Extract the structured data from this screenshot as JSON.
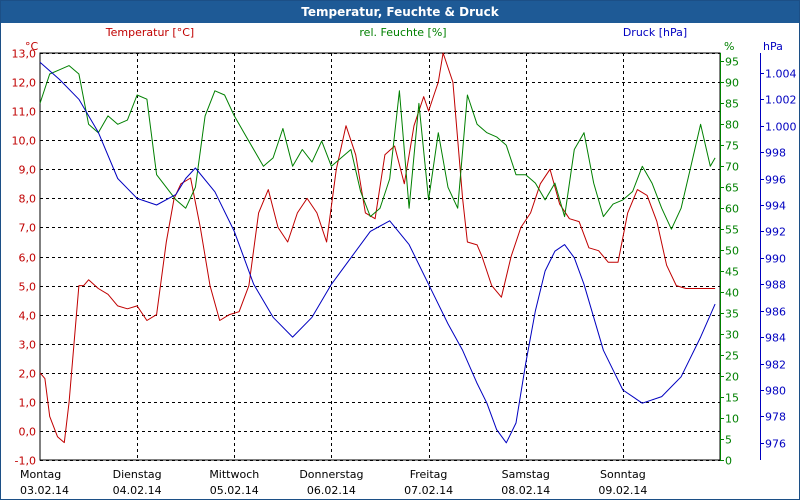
{
  "chart_data": {
    "type": "line",
    "title": "Temperatur, Feuchte & Druck",
    "legend": {
      "temp": "Temperatur [°C]",
      "hum": "rel. Feuchte [%]",
      "press": "Druck [hPa]"
    },
    "units": {
      "left": "°C",
      "right1": "%",
      "right2": "hPa"
    },
    "colors": {
      "temp": "#c00000",
      "hum": "#008000",
      "press": "#0000c0",
      "title_bg": "#1e5a96",
      "grid": "#000000"
    },
    "grid": true,
    "x_range": [
      0,
      7
    ],
    "x_ticks": [
      {
        "day": "Montag",
        "date": "03.02.14"
      },
      {
        "day": "Dienstag",
        "date": "04.02.14"
      },
      {
        "day": "Mittwoch",
        "date": "05.02.14"
      },
      {
        "day": "Donnerstag",
        "date": "06.02.14"
      },
      {
        "day": "Freitag",
        "date": "07.02.14"
      },
      {
        "day": "Samstag",
        "date": "08.02.14"
      },
      {
        "day": "Sonntag",
        "date": "09.02.14"
      }
    ],
    "y_left": {
      "label": "°C",
      "range": [
        -1.0,
        13.0
      ],
      "ticks": [
        "-1,0",
        "0,0",
        "1,0",
        "2,0",
        "3,0",
        "4,0",
        "5,0",
        "6,0",
        "7,0",
        "8,0",
        "9,0",
        "10,0",
        "11,0",
        "12,0",
        "13,0"
      ]
    },
    "y_right1": {
      "label": "%",
      "range": [
        0,
        97
      ],
      "ticks": [
        "0",
        "5",
        "10",
        "15",
        "20",
        "25",
        "30",
        "35",
        "40",
        "45",
        "50",
        "55",
        "60",
        "65",
        "70",
        "75",
        "80",
        "85",
        "90",
        "95"
      ]
    },
    "y_right2": {
      "label": "hPa",
      "range": [
        974.7,
        1005.5
      ],
      "ticks": [
        "976",
        "978",
        "980",
        "982",
        "984",
        "986",
        "988",
        "990",
        "992",
        "994",
        "996",
        "998",
        "1.000",
        "1.002",
        "1.004"
      ]
    },
    "series": [
      {
        "name": "Temperatur [°C]",
        "axis": "left",
        "x": [
          0.0,
          0.05,
          0.1,
          0.18,
          0.25,
          0.3,
          0.35,
          0.4,
          0.45,
          0.5,
          0.6,
          0.7,
          0.8,
          0.9,
          1.0,
          1.1,
          1.2,
          1.3,
          1.38,
          1.45,
          1.55,
          1.65,
          1.75,
          1.85,
          1.95,
          2.05,
          2.15,
          2.25,
          2.35,
          2.45,
          2.55,
          2.65,
          2.75,
          2.85,
          2.95,
          3.05,
          3.15,
          3.25,
          3.35,
          3.45,
          3.55,
          3.65,
          3.75,
          3.85,
          3.95,
          4.0,
          4.05,
          4.1,
          4.15,
          4.25,
          4.35,
          4.4,
          4.5,
          4.55,
          4.65,
          4.75,
          4.85,
          4.95,
          5.05,
          5.15,
          5.25,
          5.35,
          5.45,
          5.55,
          5.65,
          5.75,
          5.85,
          5.95,
          6.05,
          6.15,
          6.25,
          6.35,
          6.45,
          6.55,
          6.65,
          6.75,
          6.85,
          6.95
        ],
        "values": [
          2.0,
          1.8,
          0.5,
          -0.2,
          -0.4,
          1.0,
          3.0,
          5.0,
          5.0,
          5.2,
          4.9,
          4.7,
          4.3,
          4.2,
          4.3,
          3.8,
          4.0,
          6.5,
          8.0,
          8.5,
          8.7,
          7.0,
          5.0,
          3.8,
          4.0,
          4.1,
          5.0,
          7.5,
          8.3,
          7.0,
          6.5,
          7.5,
          8.0,
          7.5,
          6.5,
          9.0,
          10.5,
          9.5,
          7.5,
          7.3,
          9.5,
          9.8,
          8.5,
          10.5,
          11.5,
          11.0,
          11.5,
          12.0,
          13.0,
          12.0,
          8.0,
          6.5,
          6.4,
          6.0,
          5.0,
          4.6,
          6.0,
          7.0,
          7.5,
          8.5,
          9.0,
          7.8,
          7.3,
          7.2,
          6.3,
          6.2,
          5.8,
          5.8,
          7.5,
          8.3,
          8.1,
          7.2,
          5.7,
          5.0,
          4.9,
          4.9,
          4.9,
          4.9
        ]
      },
      {
        "name": "rel. Feuchte [%]",
        "axis": "right1",
        "x": [
          0.0,
          0.1,
          0.2,
          0.3,
          0.4,
          0.5,
          0.6,
          0.7,
          0.8,
          0.9,
          1.0,
          1.1,
          1.2,
          1.3,
          1.4,
          1.5,
          1.6,
          1.7,
          1.8,
          1.9,
          2.0,
          2.1,
          2.2,
          2.3,
          2.4,
          2.5,
          2.6,
          2.7,
          2.8,
          2.9,
          3.0,
          3.1,
          3.2,
          3.3,
          3.4,
          3.5,
          3.6,
          3.7,
          3.8,
          3.9,
          4.0,
          4.1,
          4.2,
          4.3,
          4.4,
          4.5,
          4.6,
          4.7,
          4.8,
          4.9,
          5.0,
          5.1,
          5.2,
          5.3,
          5.4,
          5.5,
          5.6,
          5.7,
          5.8,
          5.9,
          6.0,
          6.1,
          6.2,
          6.3,
          6.4,
          6.5,
          6.6,
          6.7,
          6.8,
          6.9,
          6.95
        ],
        "values": [
          85,
          92,
          93,
          94,
          92,
          80,
          78,
          82,
          80,
          81,
          87,
          86,
          68,
          65,
          62,
          60,
          65,
          82,
          88,
          87,
          82,
          78,
          74,
          70,
          72,
          79,
          70,
          74,
          71,
          76,
          70,
          72,
          74,
          64,
          58,
          60,
          67,
          88,
          60,
          85,
          62,
          78,
          65,
          60,
          87,
          80,
          78,
          77,
          75,
          68,
          68,
          66,
          62,
          66,
          58,
          74,
          78,
          66,
          58,
          61,
          62,
          64,
          70,
          66,
          60,
          55,
          60,
          70,
          80,
          70,
          72
        ]
      },
      {
        "name": "Druck [hPa]",
        "axis": "right2",
        "x": [
          0.0,
          0.2,
          0.4,
          0.6,
          0.8,
          1.0,
          1.2,
          1.4,
          1.5,
          1.6,
          1.8,
          2.0,
          2.2,
          2.4,
          2.6,
          2.8,
          3.0,
          3.2,
          3.4,
          3.6,
          3.8,
          4.0,
          4.2,
          4.35,
          4.5,
          4.6,
          4.7,
          4.8,
          4.9,
          5.0,
          5.1,
          5.2,
          5.3,
          5.4,
          5.5,
          5.6,
          5.8,
          6.0,
          6.2,
          6.4,
          6.6,
          6.8,
          6.95
        ],
        "values": [
          1004.8,
          1003.5,
          1002.0,
          999.5,
          996.0,
          994.5,
          994.0,
          994.8,
          996.0,
          996.8,
          995.0,
          992.0,
          988.0,
          985.5,
          984.0,
          985.5,
          988.0,
          990.0,
          992.0,
          992.8,
          991.0,
          988.0,
          985.0,
          983.0,
          980.5,
          979.0,
          977.0,
          976.0,
          977.5,
          982.0,
          986.0,
          989.0,
          990.5,
          991.0,
          990.0,
          988.0,
          983.0,
          980.0,
          979.0,
          979.5,
          981.0,
          984.0,
          986.5
        ]
      }
    ]
  }
}
